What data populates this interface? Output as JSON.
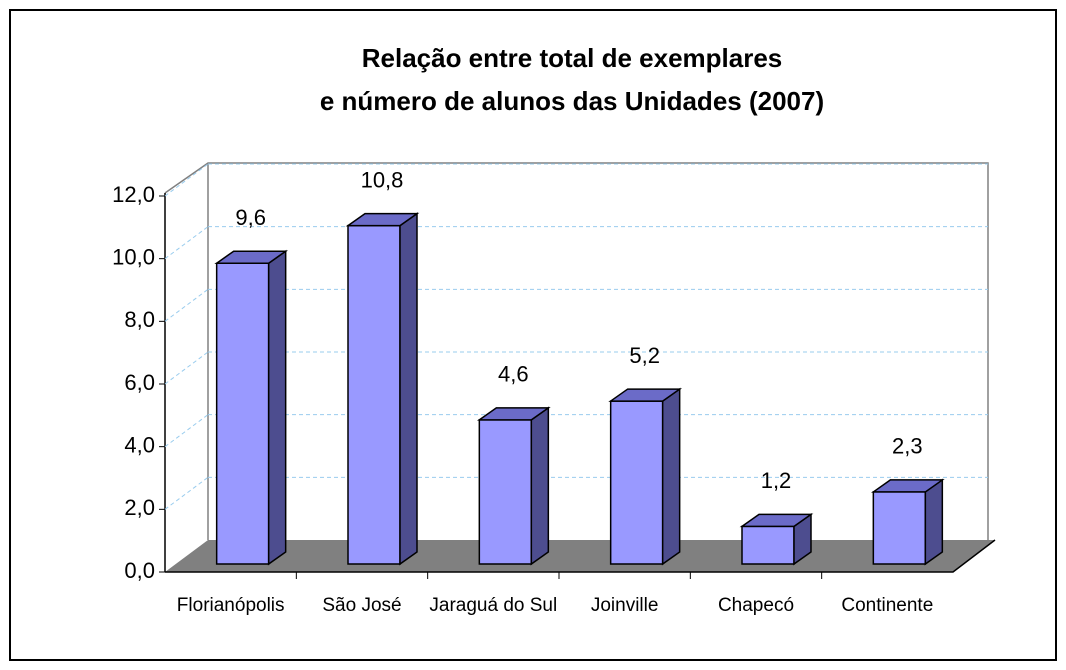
{
  "chart_data": {
    "type": "bar3d",
    "title": [
      "Relação entre total de exemplares",
      "e número de alunos das Unidades (2007)"
    ],
    "categories": [
      "Florianópolis",
      "São José",
      "Jaraguá do Sul",
      "Joinville",
      "Chapecó",
      "Continente"
    ],
    "values": [
      9.6,
      10.8,
      4.6,
      5.2,
      1.2,
      2.3
    ],
    "value_labels": [
      "9,6",
      "10,8",
      "4,6",
      "5,2",
      "1,2",
      "2,3"
    ],
    "color": "#9999ff",
    "ylim": [
      0,
      12
    ],
    "yticks": [
      {
        "value": 0,
        "label": "0,0"
      },
      {
        "value": 2,
        "label": "2,0"
      },
      {
        "value": 4,
        "label": "4,0"
      },
      {
        "value": 6,
        "label": "6,0"
      },
      {
        "value": 8,
        "label": "8,0"
      },
      {
        "value": 10,
        "label": "10,0"
      },
      {
        "value": 12,
        "label": "12,0"
      }
    ],
    "grid": true
  }
}
